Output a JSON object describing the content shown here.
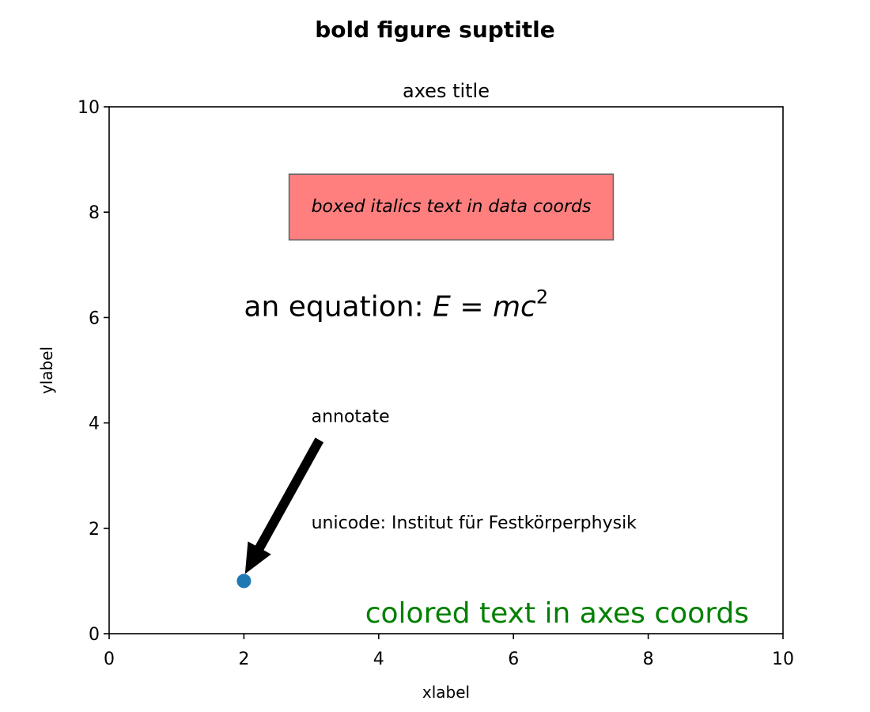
{
  "chart_data": {
    "type": "scatter",
    "suptitle": "bold figure suptitle",
    "title": "axes title",
    "xlabel": "xlabel",
    "ylabel": "ylabel",
    "xlim": [
      0,
      10
    ],
    "ylim": [
      0,
      10
    ],
    "grid": false,
    "x_ticks": [
      {
        "value": 0,
        "label": "0"
      },
      {
        "value": 2,
        "label": "2"
      },
      {
        "value": 4,
        "label": "4"
      },
      {
        "value": 6,
        "label": "6"
      },
      {
        "value": 8,
        "label": "8"
      },
      {
        "value": 10,
        "label": "10"
      }
    ],
    "y_ticks": [
      {
        "value": 0,
        "label": "0"
      },
      {
        "value": 2,
        "label": "2"
      },
      {
        "value": 4,
        "label": "4"
      },
      {
        "value": 6,
        "label": "6"
      },
      {
        "value": 8,
        "label": "8"
      },
      {
        "value": 10,
        "label": "10"
      }
    ],
    "points": [
      {
        "x": 2,
        "y": 1,
        "color": "#1f77b4"
      }
    ],
    "annotations": {
      "boxed": {
        "text": "boxed italics text in data coords",
        "x": 3,
        "y": 8,
        "box_color": "#ff7f7f",
        "edge_color": "#666666"
      },
      "equation": {
        "prefix": "an equation: ",
        "lhs": "E",
        "rhs_coeff": "mc",
        "exponent": "2",
        "x": 2,
        "y": 6
      },
      "unicode": {
        "text": "unicode: Institut für Festkörperphysik",
        "x": 3,
        "y": 2
      },
      "arrow": {
        "text": "annotate",
        "xy": [
          2,
          1
        ],
        "xytext": [
          3,
          4
        ],
        "color": "#000000"
      },
      "axes_text": {
        "text": "colored text in axes coords",
        "color": "#008000"
      }
    }
  }
}
